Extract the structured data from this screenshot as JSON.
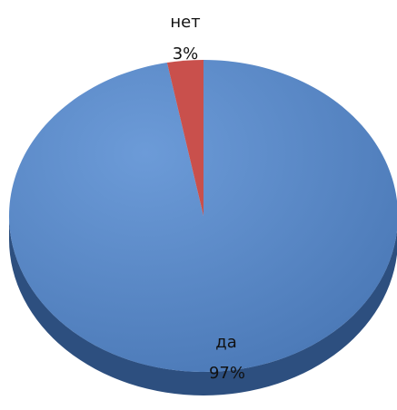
{
  "chart_data": {
    "type": "pie",
    "style": "3d",
    "slices": [
      {
        "label": "да",
        "value": 97,
        "value_label": "97%",
        "color": "#5b8ac9",
        "shade": "#2d4f7f"
      },
      {
        "label": "нет",
        "value": 3,
        "value_label": "3%",
        "color": "#c9504c",
        "shade": "#7e2f2c"
      }
    ],
    "legend": "none"
  }
}
